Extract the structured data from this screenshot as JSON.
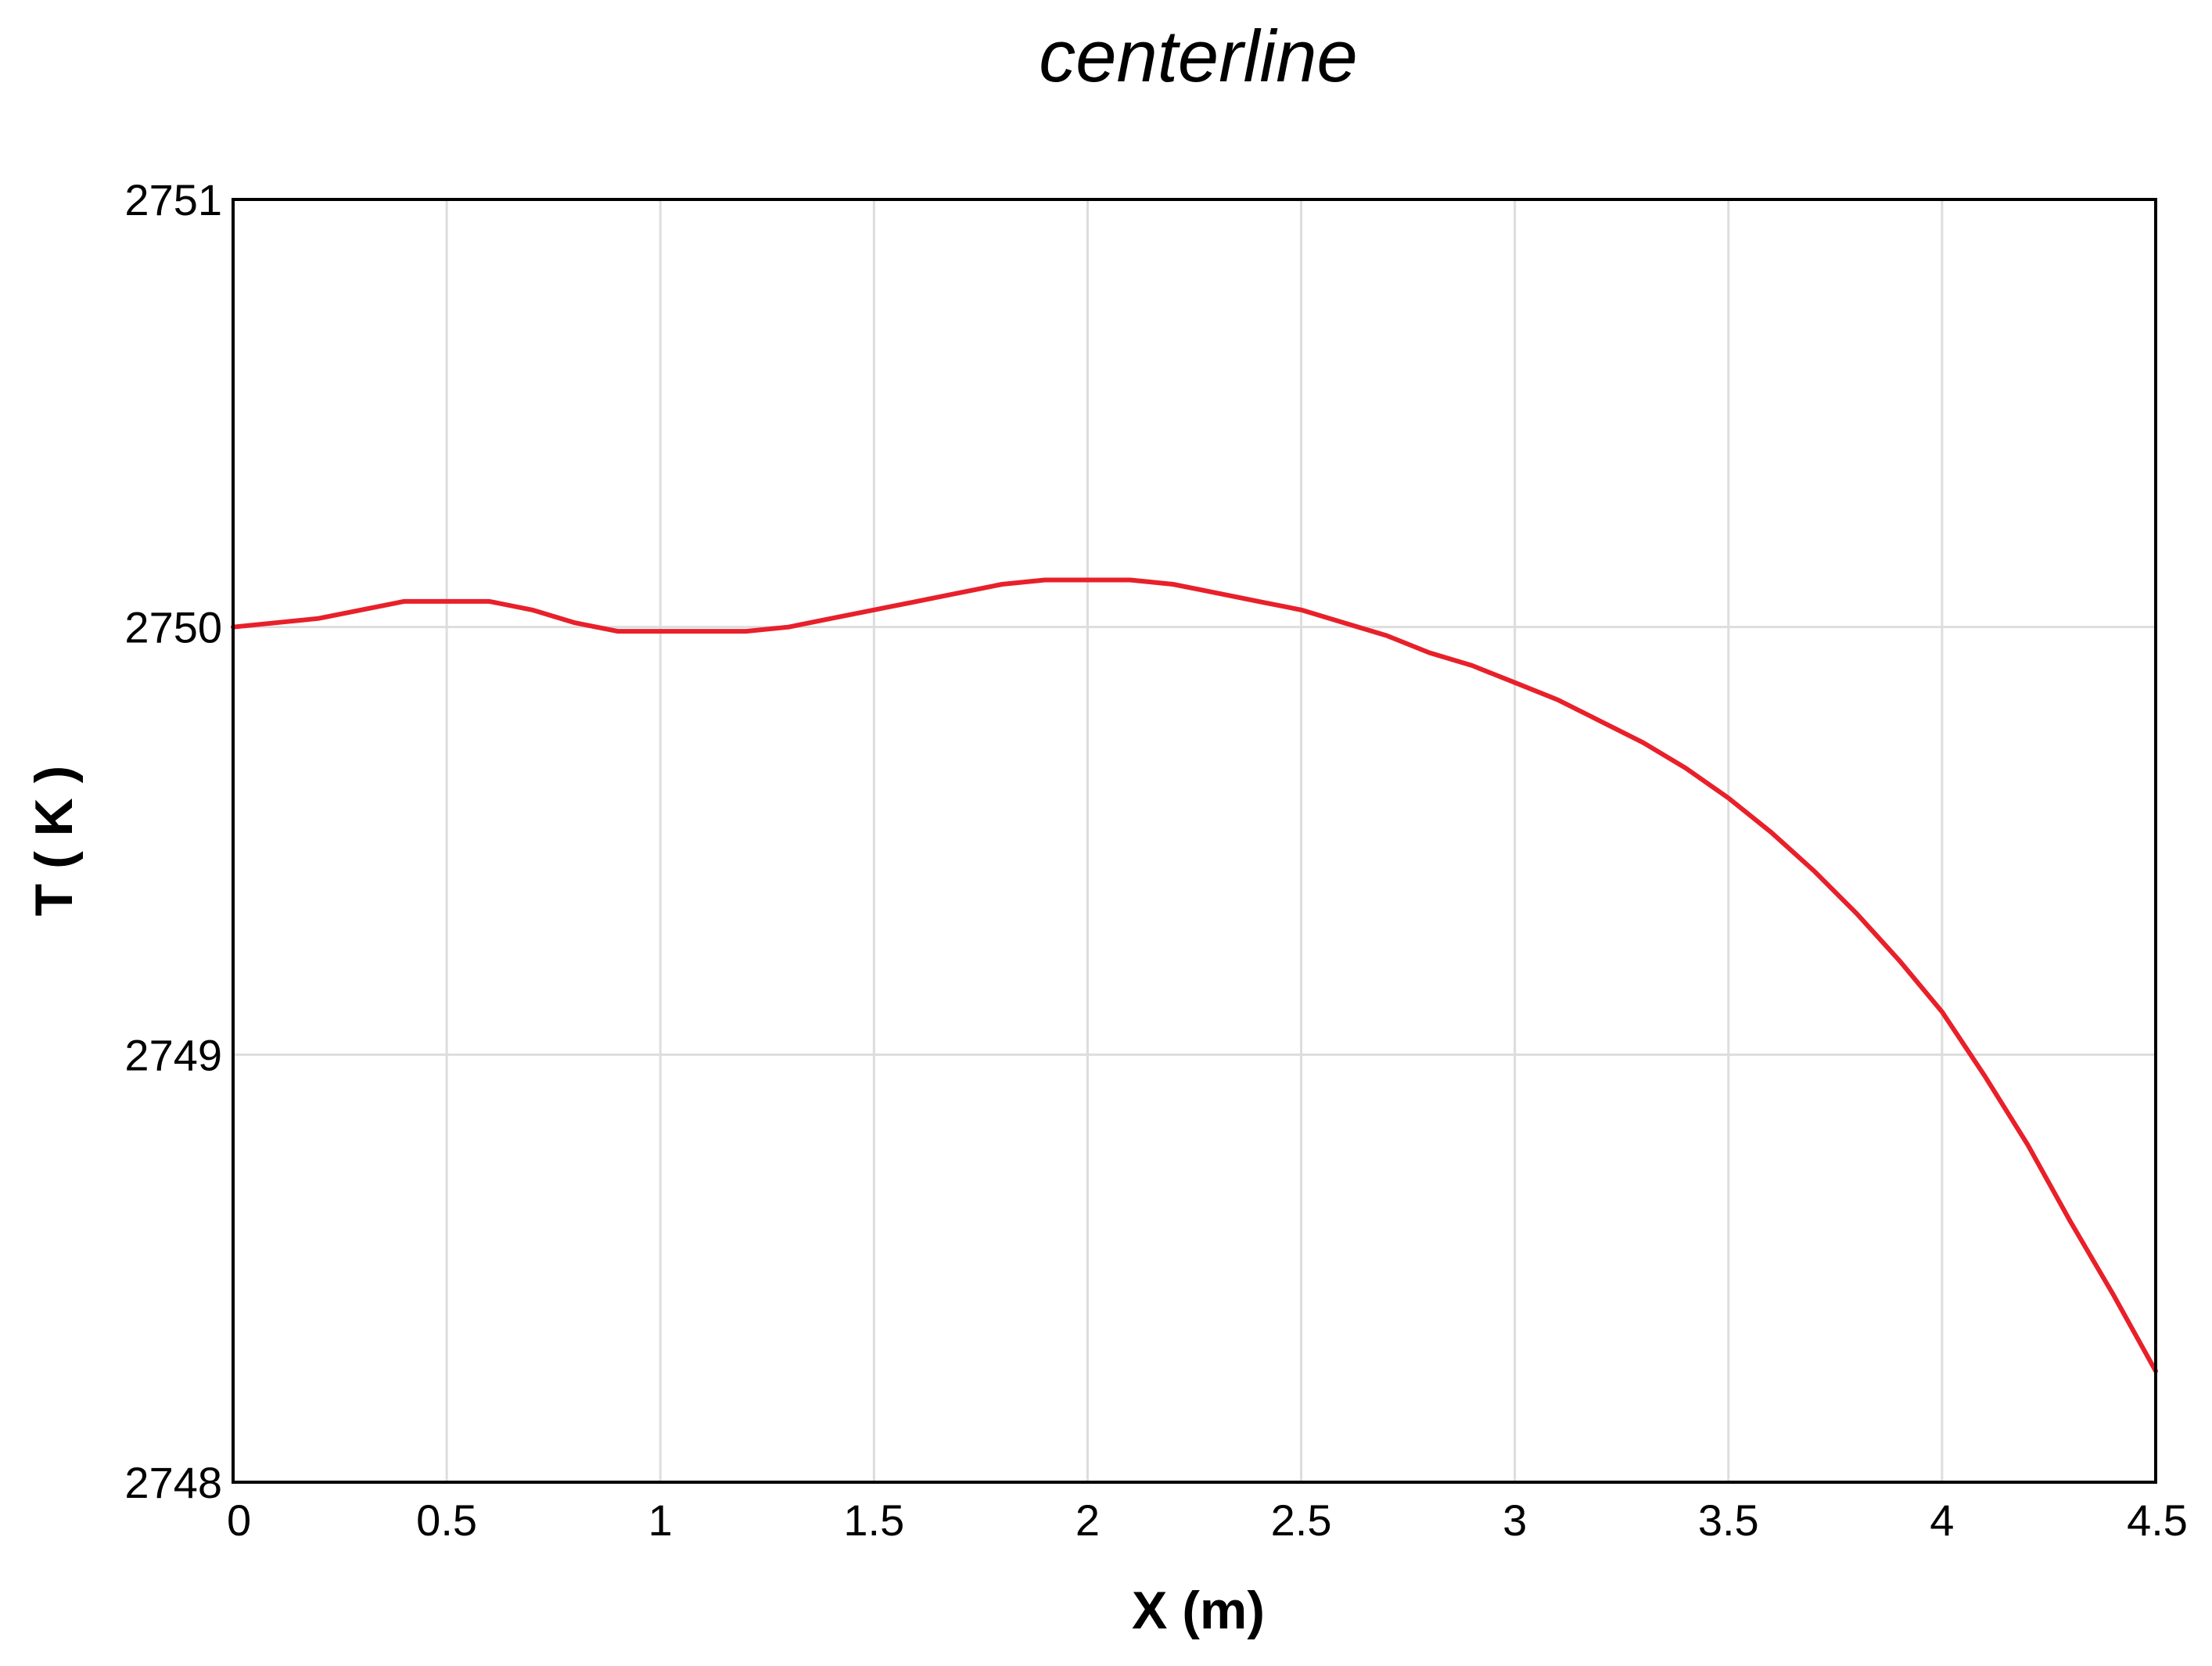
{
  "chart_data": {
    "type": "line",
    "title": "centerline",
    "xlabel": "X (m)",
    "ylabel": "T ( K )",
    "xlim": [
      0,
      4.5
    ],
    "ylim": [
      2748,
      2751
    ],
    "xticks": [
      0,
      0.5,
      1,
      1.5,
      2,
      2.5,
      3,
      3.5,
      4,
      4.5
    ],
    "xtick_labels": [
      "0",
      "0.5",
      "1",
      "1.5",
      "2",
      "2.5",
      "3",
      "3.5",
      "4",
      "4.5"
    ],
    "yticks": [
      2748,
      2749,
      2750,
      2751
    ],
    "ytick_labels": [
      "2748",
      "2749",
      "2750",
      "2751"
    ],
    "grid": true,
    "series": [
      {
        "color": "#e8202a",
        "x": [
          0,
          0.1,
          0.2,
          0.3,
          0.4,
          0.5,
          0.6,
          0.7,
          0.8,
          0.9,
          1.0,
          1.1,
          1.2,
          1.3,
          1.4,
          1.5,
          1.6,
          1.7,
          1.8,
          1.9,
          2.0,
          2.1,
          2.2,
          2.3,
          2.4,
          2.5,
          2.6,
          2.7,
          2.8,
          2.9,
          3.0,
          3.1,
          3.2,
          3.3,
          3.4,
          3.5,
          3.6,
          3.7,
          3.8,
          3.9,
          4.0,
          4.1,
          4.2,
          4.3,
          4.4,
          4.5
        ],
        "y": [
          2750.0,
          2750.01,
          2750.02,
          2750.04,
          2750.06,
          2750.06,
          2750.06,
          2750.04,
          2750.01,
          2749.99,
          2749.99,
          2749.99,
          2749.99,
          2750.0,
          2750.02,
          2750.04,
          2750.06,
          2750.08,
          2750.1,
          2750.11,
          2750.11,
          2750.11,
          2750.1,
          2750.08,
          2750.06,
          2750.04,
          2750.01,
          2749.98,
          2749.94,
          2749.91,
          2749.87,
          2749.83,
          2749.78,
          2749.73,
          2749.67,
          2749.6,
          2749.52,
          2749.43,
          2749.33,
          2749.22,
          2749.1,
          2748.95,
          2748.79,
          2748.61,
          2748.44,
          2748.26
        ]
      }
    ]
  }
}
